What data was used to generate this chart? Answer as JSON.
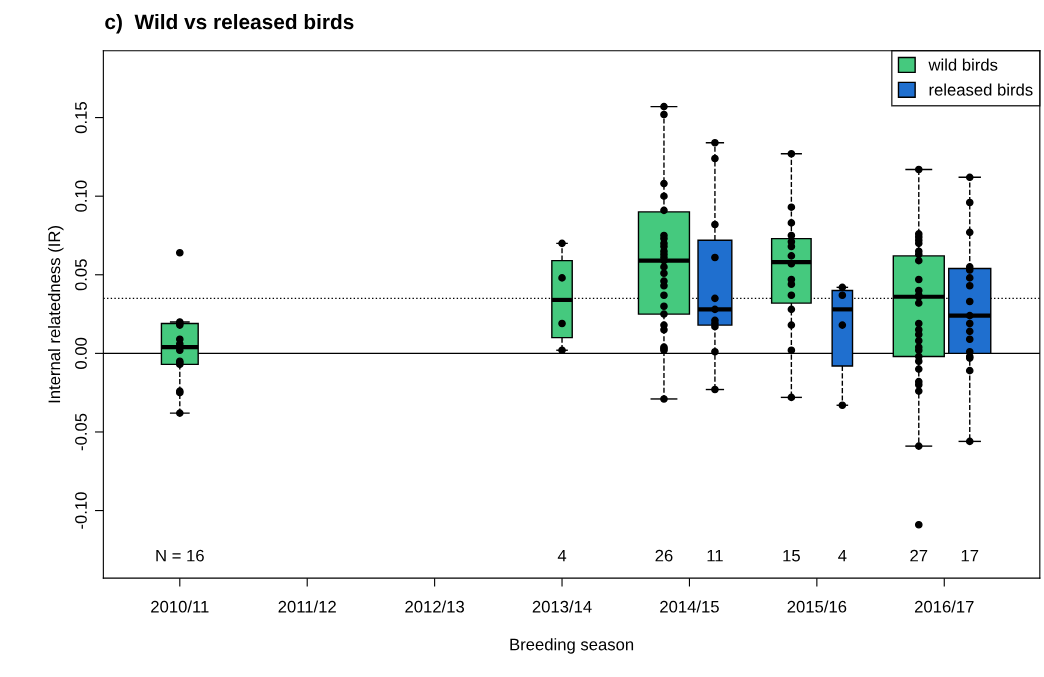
{
  "chart_data": {
    "type": "box",
    "title": "c)  Wild vs released birds",
    "xlabel": "Breeding season",
    "ylabel": "Internal relatedness (IR)",
    "categories": [
      "2010/11",
      "2011/12",
      "2012/13",
      "2013/14",
      "2014/15",
      "2015/16",
      "2016/17"
    ],
    "ylim": [
      -0.143,
      0.1925
    ],
    "yticks": [
      {
        "value": -0.1,
        "label": "-0.10"
      },
      {
        "value": -0.05,
        "label": "-0.05"
      },
      {
        "value": 0,
        "label": "0.00"
      },
      {
        "value": 0.05,
        "label": "0.05"
      },
      {
        "value": 0.1,
        "label": "0.10"
      },
      {
        "value": 0.15,
        "label": "0.15"
      }
    ],
    "series": [
      {
        "name": "wild birds",
        "color": "#45c97e",
        "boxes": [
          {
            "low": -0.038,
            "q1": -0.007,
            "median": 0.004,
            "q3": 0.019,
            "high": 0.02,
            "outliers": [
              0.064
            ]
          },
          null,
          null,
          {
            "low": 0.002,
            "q1": 0.01,
            "median": 0.034,
            "q3": 0.059,
            "high": 0.07
          },
          {
            "low": -0.029,
            "q1": 0.025,
            "median": 0.059,
            "q3": 0.09,
            "high": 0.157
          },
          {
            "low": -0.028,
            "q1": 0.032,
            "median": 0.058,
            "q3": 0.073,
            "high": 0.127
          },
          {
            "low": -0.059,
            "q1": -0.002,
            "median": 0.036,
            "q3": 0.062,
            "high": 0.117,
            "outliers": [
              -0.109
            ]
          }
        ]
      },
      {
        "name": "released birds",
        "color": "#1f6fcf",
        "boxes": [
          null,
          null,
          null,
          null,
          {
            "low": -0.023,
            "q1": 0.018,
            "median": 0.028,
            "q3": 0.072,
            "high": 0.134
          },
          {
            "low": -0.033,
            "q1": -0.008,
            "median": 0.028,
            "q3": 0.04,
            "high": 0.042
          },
          {
            "low": -0.056,
            "q1": 0.0,
            "median": 0.024,
            "q3": 0.054,
            "high": 0.112
          }
        ]
      },
      {
        "type": "scatter",
        "color": "#000000",
        "x": [
          "2010/11",
          "2010/11",
          "2010/11",
          "2010/11",
          "2010/11",
          "2010/11",
          "2010/11",
          "2010/11",
          "2010/11",
          "2010/11",
          "2010/11",
          "2010/11",
          "2013/14",
          "2013/14",
          "2013/14",
          "2013/14",
          "2014/15",
          "2014/15",
          "2014/15",
          "2014/15",
          "2014/15",
          "2014/15",
          "2014/15",
          "2014/15",
          "2014/15",
          "2014/15",
          "2014/15",
          "2014/15",
          "2014/15",
          "2014/15",
          "2014/15",
          "2014/15",
          "2014/15",
          "2014/15",
          "2014/15",
          "2014/15",
          "2014/15",
          "2014/15",
          "2014/15",
          "2014/15",
          "2014/15",
          "2014/15",
          "2015/16",
          "2015/16",
          "2015/16",
          "2015/16",
          "2015/16",
          "2015/16",
          "2015/16",
          "2015/16",
          "2015/16",
          "2015/16",
          "2015/16",
          "2015/16",
          "2015/16",
          "2015/16",
          "2015/16",
          "2016/17",
          "2016/17",
          "2016/17",
          "2016/17",
          "2016/17",
          "2016/17",
          "2016/17",
          "2016/17",
          "2016/17",
          "2016/17",
          "2016/17",
          "2016/17",
          "2016/17",
          "2016/17",
          "2016/17",
          "2016/17",
          "2016/17",
          "2016/17",
          "2016/17",
          "2016/17",
          "2016/17",
          "2016/17",
          "2016/17",
          "2016/17",
          "2016/17",
          "2016/17"
        ],
        "values": [
          0.02,
          0.019,
          0.018,
          0.009,
          0.006,
          0.002,
          -0.005,
          -0.006,
          -0.007,
          -0.024,
          -0.025,
          -0.038,
          0.07,
          0.048,
          0.019,
          0.002,
          0.157,
          0.152,
          0.108,
          0.1,
          0.091,
          0.075,
          0.073,
          0.07,
          0.068,
          0.065,
          0.063,
          0.061,
          0.059,
          0.055,
          0.051,
          0.046,
          0.043,
          0.037,
          0.03,
          0.025,
          0.018,
          0.015,
          0.004,
          0.003,
          0.002,
          -0.029,
          0.127,
          0.093,
          0.083,
          0.075,
          0.071,
          0.068,
          0.062,
          0.057,
          0.047,
          0.044,
          0.037,
          0.028,
          0.018,
          0.002,
          -0.028,
          0.117,
          0.076,
          0.074,
          0.072,
          0.07,
          0.065,
          0.063,
          0.059,
          0.047,
          0.04,
          0.037,
          0.036,
          0.032,
          0.019,
          0.015,
          0.012,
          0.008,
          0.004,
          0.002,
          -0.002,
          -0.005,
          -0.01,
          -0.018,
          -0.02,
          -0.024,
          -0.059
        ]
      },
      {
        "type": "scatter",
        "color": "#000000",
        "x": [
          "2014/15",
          "2014/15",
          "2014/15",
          "2014/15",
          "2014/15",
          "2014/15",
          "2014/15",
          "2014/15",
          "2014/15",
          "2014/15",
          "2014/15",
          "2015/16",
          "2015/16",
          "2015/16",
          "2015/16",
          "2016/17",
          "2016/17",
          "2016/17",
          "2016/17",
          "2016/17",
          "2016/17",
          "2016/17",
          "2016/17",
          "2016/17",
          "2016/17",
          "2016/17",
          "2016/17",
          "2016/17",
          "2016/17",
          "2016/17",
          "2016/17",
          "2016/17"
        ],
        "values": [
          0.134,
          0.124,
          0.082,
          0.061,
          0.035,
          0.028,
          0.021,
          0.019,
          0.017,
          0.001,
          -0.023,
          0.042,
          0.037,
          0.018,
          -0.033,
          0.112,
          0.096,
          0.077,
          0.055,
          0.053,
          0.048,
          0.043,
          0.033,
          0.024,
          0.019,
          0.014,
          0.009,
          0.001,
          -0.002,
          -0.003,
          -0.011,
          -0.056
        ]
      }
    ],
    "ref_lines": [
      {
        "axis": "y",
        "value": 0,
        "color": "#000000",
        "line_style": "solid"
      },
      {
        "axis": "y",
        "value": 0.035,
        "color": "#000000",
        "line_style": "dotted"
      }
    ],
    "annotations": [
      "N = 16",
      "4",
      "26",
      "11",
      "15",
      "4",
      "27",
      "17"
    ],
    "legend": "top right",
    "grid": false,
    "marker": "circle"
  }
}
